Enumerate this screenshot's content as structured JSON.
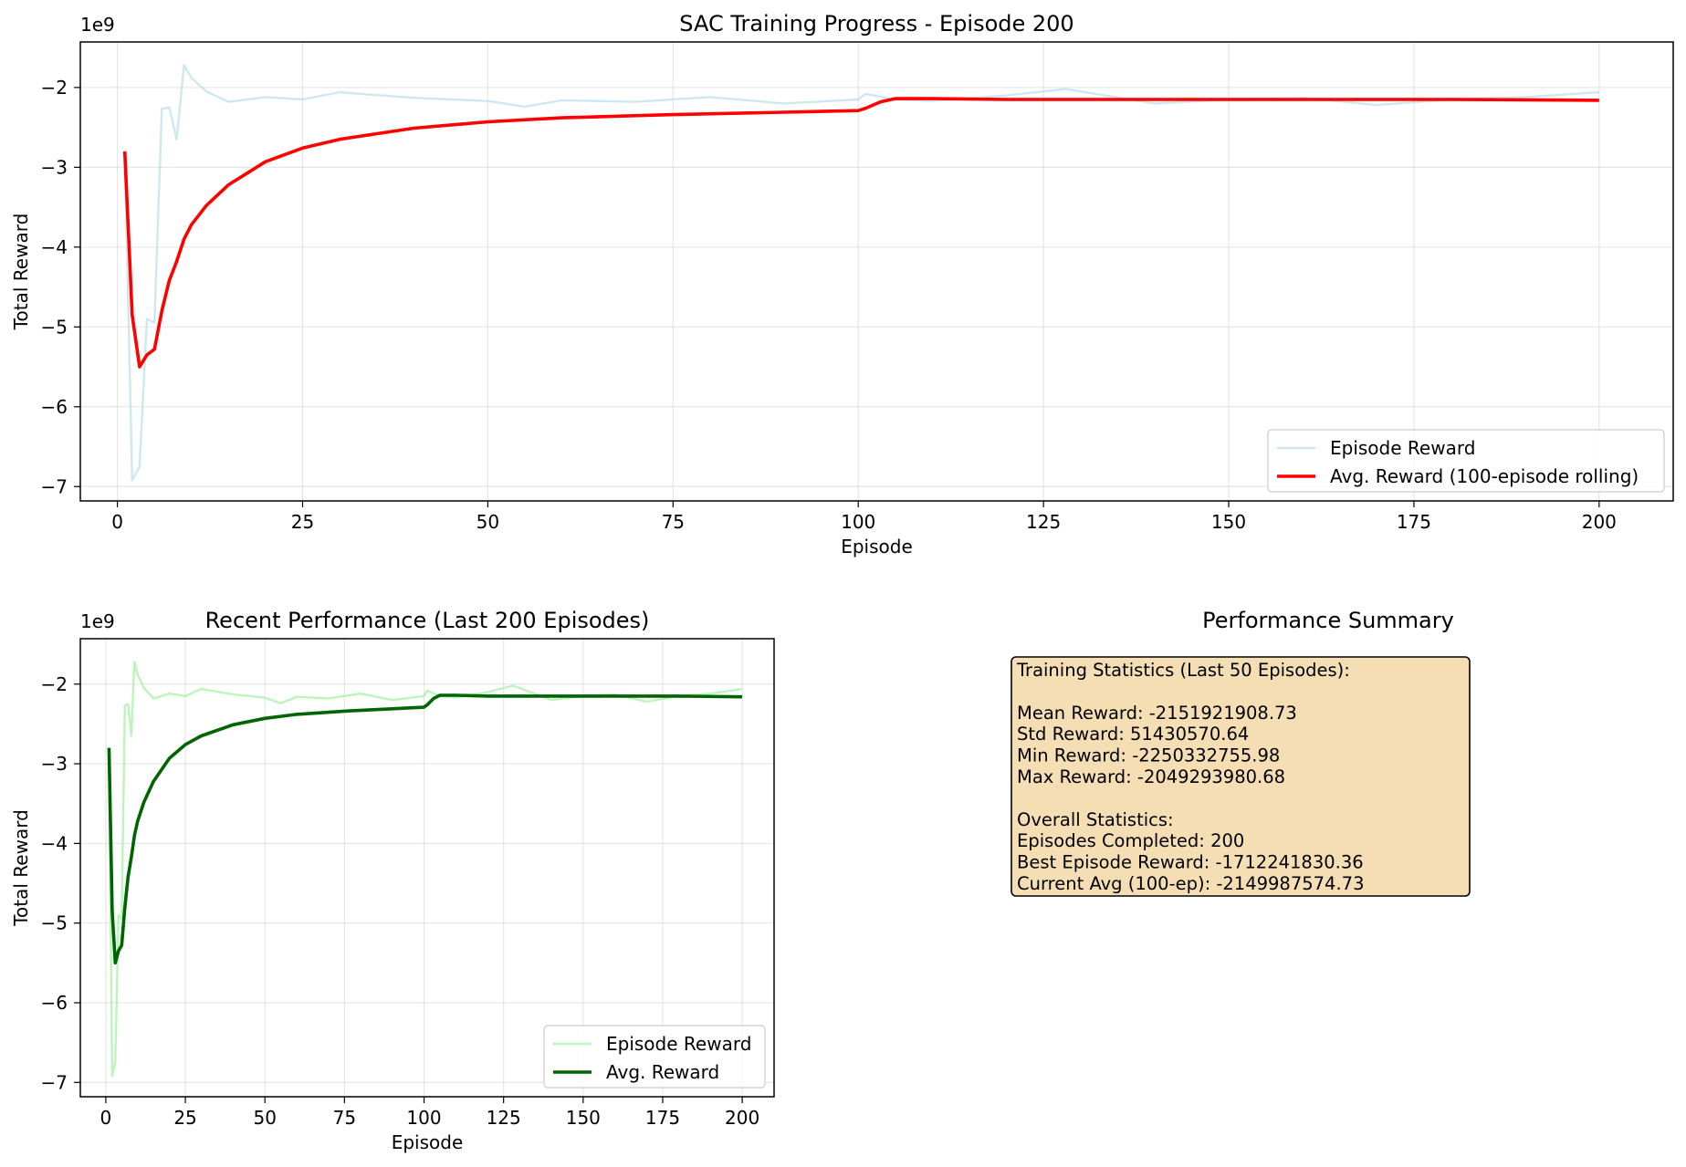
{
  "chart_data": [
    {
      "type": "line",
      "title": "SAC Training Progress - Episode 200",
      "xlabel": "Episode",
      "ylabel": "Total Reward",
      "y_scale_label": "1e9",
      "xlim": [
        -5,
        210
      ],
      "ylim": [
        -7.18,
        -1.43
      ],
      "x_ticks": [
        0,
        25,
        50,
        75,
        100,
        125,
        150,
        175,
        200
      ],
      "y_ticks": [
        -7,
        -6,
        -5,
        -4,
        -3,
        -2
      ],
      "grid": true,
      "legend": "lower-right",
      "series": [
        {
          "name": "Episode Reward",
          "color": "#add8e6",
          "alpha": 0.6,
          "x": [
            1,
            2,
            3,
            4,
            5,
            6,
            7,
            8,
            9,
            10,
            12,
            15,
            20,
            25,
            30,
            40,
            50,
            55,
            60,
            70,
            80,
            90,
            100,
            101,
            105,
            110,
            120,
            128,
            140,
            150,
            160,
            170,
            180,
            190,
            200
          ],
          "y": [
            -2.8,
            -6.92,
            -6.75,
            -4.9,
            -4.95,
            -2.27,
            -2.25,
            -2.65,
            -1.72,
            -1.88,
            -2.05,
            -2.18,
            -2.12,
            -2.15,
            -2.06,
            -2.13,
            -2.17,
            -2.24,
            -2.16,
            -2.18,
            -2.12,
            -2.2,
            -2.15,
            -2.08,
            -2.15,
            -2.17,
            -2.1,
            -2.02,
            -2.2,
            -2.15,
            -2.13,
            -2.22,
            -2.15,
            -2.12,
            -2.06
          ]
        },
        {
          "name": "Avg. Reward (100-episode rolling)",
          "color": "#ff0000",
          "x": [
            1,
            2,
            3,
            4,
            5,
            6,
            7,
            8,
            9,
            10,
            12,
            15,
            20,
            25,
            30,
            40,
            50,
            60,
            75,
            90,
            100,
            101,
            103,
            105,
            110,
            120,
            140,
            160,
            180,
            200
          ],
          "y": [
            -2.8,
            -4.85,
            -5.5,
            -5.35,
            -5.28,
            -4.8,
            -4.42,
            -4.18,
            -3.9,
            -3.72,
            -3.48,
            -3.22,
            -2.93,
            -2.76,
            -2.65,
            -2.51,
            -2.43,
            -2.38,
            -2.34,
            -2.31,
            -2.29,
            -2.26,
            -2.18,
            -2.14,
            -2.14,
            -2.15,
            -2.15,
            -2.15,
            -2.15,
            -2.16
          ]
        }
      ]
    },
    {
      "type": "line",
      "title": "Recent Performance (Last 200 Episodes)",
      "xlabel": "Episode",
      "ylabel": "Total Reward",
      "y_scale_label": "1e9",
      "xlim": [
        -8,
        210
      ],
      "ylim": [
        -7.18,
        -1.43
      ],
      "x_ticks": [
        0,
        25,
        50,
        75,
        100,
        125,
        150,
        175,
        200
      ],
      "y_ticks": [
        -7,
        -6,
        -5,
        -4,
        -3,
        -2
      ],
      "grid": true,
      "legend": "lower-right",
      "series": [
        {
          "name": "Episode Reward",
          "color": "#90ee90",
          "alpha": 0.6,
          "x": [
            1,
            2,
            3,
            4,
            5,
            6,
            7,
            8,
            9,
            10,
            12,
            15,
            20,
            25,
            30,
            40,
            50,
            55,
            60,
            70,
            80,
            90,
            100,
            101,
            105,
            110,
            120,
            128,
            140,
            150,
            160,
            170,
            180,
            190,
            200
          ],
          "y": [
            -2.8,
            -6.92,
            -6.75,
            -4.9,
            -4.95,
            -2.27,
            -2.25,
            -2.65,
            -1.72,
            -1.88,
            -2.05,
            -2.18,
            -2.12,
            -2.15,
            -2.06,
            -2.13,
            -2.17,
            -2.24,
            -2.16,
            -2.18,
            -2.12,
            -2.2,
            -2.15,
            -2.08,
            -2.15,
            -2.17,
            -2.1,
            -2.02,
            -2.2,
            -2.15,
            -2.13,
            -2.22,
            -2.15,
            -2.12,
            -2.06
          ]
        },
        {
          "name": "Avg. Reward",
          "color": "#006400",
          "x": [
            1,
            2,
            3,
            4,
            5,
            6,
            7,
            8,
            9,
            10,
            12,
            15,
            20,
            25,
            30,
            40,
            50,
            60,
            75,
            90,
            100,
            101,
            103,
            105,
            110,
            120,
            140,
            160,
            180,
            200
          ],
          "y": [
            -2.8,
            -4.85,
            -5.5,
            -5.35,
            -5.28,
            -4.8,
            -4.42,
            -4.18,
            -3.9,
            -3.72,
            -3.48,
            -3.22,
            -2.93,
            -2.76,
            -2.65,
            -2.51,
            -2.43,
            -2.38,
            -2.34,
            -2.31,
            -2.29,
            -2.26,
            -2.18,
            -2.14,
            -2.14,
            -2.15,
            -2.15,
            -2.15,
            -2.15,
            -2.16
          ]
        }
      ]
    }
  ],
  "summary": {
    "title": "Performance Summary",
    "box_color": "#f5deb3",
    "lines": [
      "Training Statistics (Last 50 Episodes):",
      "",
      "Mean Reward: -2151921908.73",
      "Std Reward: 51430570.64",
      "Min Reward: -2250332755.98",
      "Max Reward: -2049293980.68",
      "",
      "Overall Statistics:",
      "Episodes Completed: 200",
      "Best Episode Reward: -1712241830.36",
      "Current Avg (100-ep): -2149987574.73"
    ]
  }
}
